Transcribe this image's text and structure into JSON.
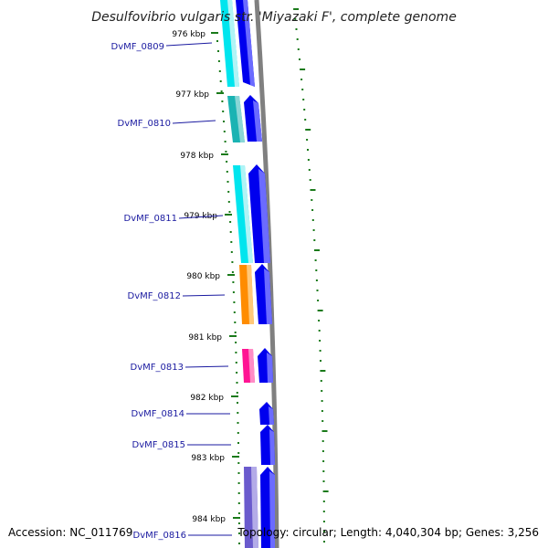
{
  "title": "Desulfovibrio vulgaris str. 'Miyazaki F', complete genome",
  "footer": {
    "accession": "Accession: NC_011769",
    "topology": "Topology: circular; Length: 4,040,304 bp; Genes: 3,256"
  },
  "colors": {
    "tick": "#1a7a1a",
    "cds": "#0000ee",
    "backbone": "#808080",
    "label": "#1a1aa0",
    "cyan": "#00e5ee",
    "teal": "#1ab3b3",
    "orange": "#ff8c00",
    "pink": "#ff1493",
    "purple": "#6a5acd"
  },
  "ticks": [
    "976 kbp",
    "977 kbp",
    "978 kbp",
    "979 kbp",
    "980 kbp",
    "981 kbp",
    "982 kbp",
    "983 kbp",
    "984 kbp"
  ],
  "genes": [
    {
      "label": "DvMF_0809",
      "category": "cyan"
    },
    {
      "label": "DvMF_0810",
      "category": "teal"
    },
    {
      "label": "DvMF_0811",
      "category": "cyan"
    },
    {
      "label": "DvMF_0812",
      "category": "orange"
    },
    {
      "label": "DvMF_0813",
      "category": "pink"
    },
    {
      "label": "DvMF_0814",
      "category": "none"
    },
    {
      "label": "DvMF_0815",
      "category": "none"
    },
    {
      "label": "DvMF_0816",
      "category": "purple"
    }
  ]
}
